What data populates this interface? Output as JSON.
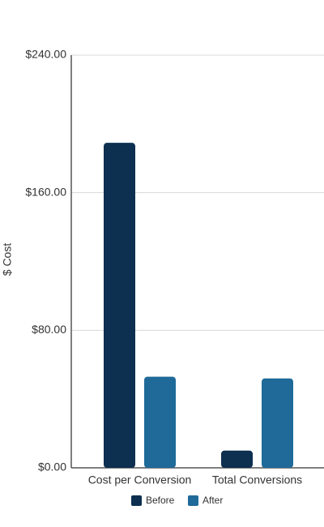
{
  "chart_data": {
    "type": "bar",
    "y_label": "$ Cost",
    "categories": [
      "Cost per Conversion",
      "Total Conversions"
    ],
    "series": [
      {
        "name": "Before",
        "color": "#0d2f50",
        "values": [
          189,
          10
        ]
      },
      {
        "name": "After",
        "color": "#1f6a99",
        "values": [
          53,
          52
        ]
      }
    ],
    "ylim": [
      0,
      240
    ],
    "yticks": [
      {
        "value": 0,
        "label": "$0.00"
      },
      {
        "value": 80,
        "label": "$80.00"
      },
      {
        "value": 160,
        "label": "$160.00"
      },
      {
        "value": 240,
        "label": "$240.00"
      }
    ],
    "grid": true
  }
}
